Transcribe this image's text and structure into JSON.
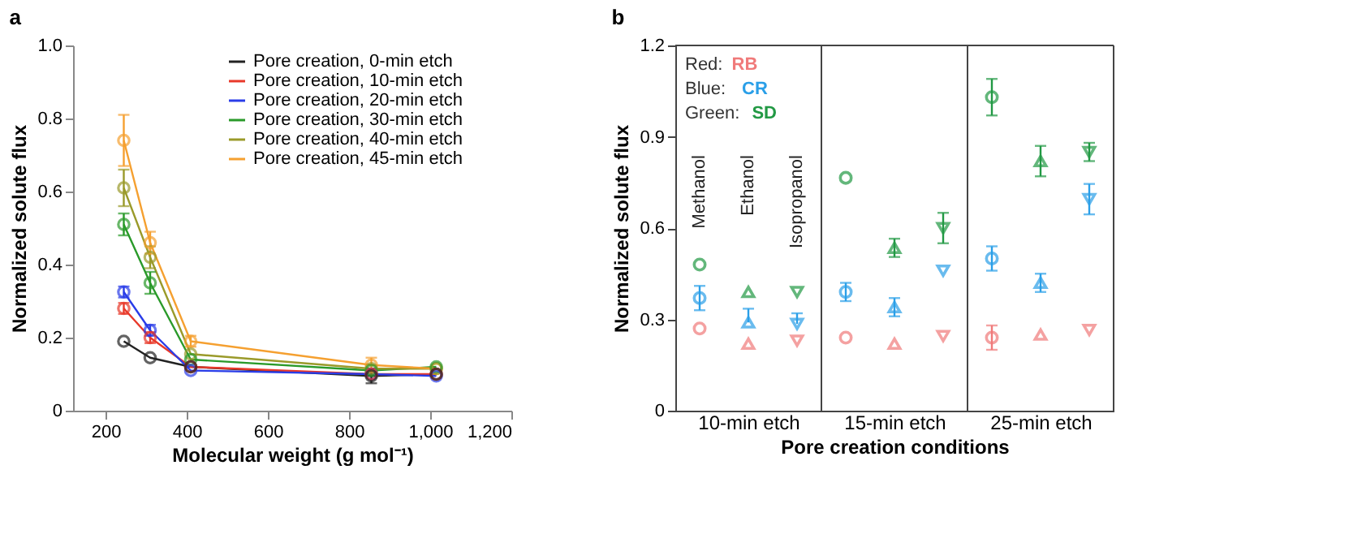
{
  "chart_data": [
    {
      "type": "line",
      "title": "a",
      "xlabel": "Molecular weight (g mol⁻¹)",
      "ylabel": "Normalized solute flux",
      "x": [
        245,
        310,
        410,
        855,
        1015
      ],
      "xlim": [
        120,
        1200
      ],
      "xticks": [
        200,
        400,
        600,
        800,
        {
          "value": 1000,
          "label": "1,000"
        },
        {
          "value": 1200,
          "label": "1,200"
        }
      ],
      "ylim": [
        0,
        1
      ],
      "yticks": [
        0,
        0.2,
        0.4,
        0.6,
        0.8,
        {
          "value": 1,
          "label": "1.0"
        }
      ],
      "grid": false,
      "legend": "top right",
      "marker": "circle",
      "line_style": "solid",
      "series": [
        {
          "name": "Pore creation, 0-min etch",
          "color": "#222222",
          "values": [
            0.19,
            0.145,
            0.12,
            0.095,
            0.1
          ],
          "errors": [
            null,
            null,
            null,
            0.02,
            null
          ]
        },
        {
          "name": "Pore creation, 10-min etch",
          "color": "#e8392a",
          "values": [
            0.28,
            0.2,
            0.12,
            0.1,
            0.1
          ],
          "errors": [
            0.015,
            0.015,
            null,
            null,
            null
          ]
        },
        {
          "name": "Pore creation, 20-min etch",
          "color": "#2a3de8",
          "values": [
            0.325,
            0.22,
            0.11,
            0.1,
            0.095
          ],
          "errors": [
            0.015,
            0.015,
            null,
            null,
            null
          ]
        },
        {
          "name": "Pore creation, 30-min etch",
          "color": "#2a9a2a",
          "values": [
            0.51,
            0.35,
            0.14,
            0.11,
            0.12
          ],
          "errors": [
            0.03,
            0.03,
            null,
            null,
            null
          ]
        },
        {
          "name": "Pore creation, 40-min etch",
          "color": "#9a9a2a",
          "values": [
            0.61,
            0.42,
            0.155,
            0.115,
            0.115
          ],
          "errors": [
            0.05,
            0.03,
            null,
            null,
            null
          ]
        },
        {
          "name": "Pore creation, 45-min etch",
          "color": "#f5a030",
          "values": [
            0.74,
            0.46,
            0.19,
            0.125,
            0.115
          ],
          "errors": [
            0.07,
            0.03,
            0.015,
            0.02,
            null
          ]
        }
      ]
    },
    {
      "type": "scatter",
      "title": "b",
      "xlabel": "Pore creation conditions",
      "ylabel": "Normalized solute flux",
      "categories": [
        null,
        "10-min etch",
        null,
        null,
        "15-min etch",
        null,
        null,
        "25-min etch",
        null
      ],
      "ylim": [
        0,
        1.2
      ],
      "yticks": [
        0,
        0.3,
        0.6,
        0.9,
        1.2
      ],
      "grid": false,
      "annotations": [
        "Red:",
        "Blue:",
        "Green:",
        "Methanol",
        "Ethanol",
        "Isopropanol"
      ],
      "series": [
        {
          "name": "RB",
          "color": "#f07a7a",
          "marker": "circle",
          "values": [
            0.27,
            null,
            null,
            0.24,
            null,
            null,
            0.24,
            null,
            null
          ],
          "errors": [
            null,
            null,
            null,
            null,
            null,
            null,
            0.04,
            null,
            null
          ]
        },
        {
          "color": "#f07a7a",
          "marker": "triangle",
          "values": [
            null,
            0.22,
            null,
            null,
            0.22,
            null,
            null,
            0.25,
            null
          ]
        },
        {
          "color": "#f07a7a",
          "marker": "triangle-down",
          "values": [
            null,
            null,
            0.23,
            null,
            null,
            0.245,
            null,
            null,
            0.265
          ]
        },
        {
          "name": "CR",
          "color": "#2a9fe8",
          "marker": "circle",
          "values": [
            0.37,
            null,
            null,
            0.39,
            null,
            null,
            0.5,
            null,
            null
          ],
          "errors": [
            0.04,
            null,
            null,
            0.03,
            null,
            null,
            0.04,
            null,
            null
          ]
        },
        {
          "color": "#2a9fe8",
          "marker": "triangle",
          "values": [
            null,
            0.29,
            null,
            null,
            0.34,
            null,
            null,
            0.42,
            null
          ],
          "errors": [
            null,
            [
              0.29,
              0.335
            ],
            null,
            null,
            0.03,
            null,
            null,
            0.03,
            null
          ]
        },
        {
          "color": "#2a9fe8",
          "marker": "triangle-down",
          "values": [
            null,
            null,
            0.285,
            null,
            null,
            0.46,
            null,
            null,
            0.695
          ],
          "errors": [
            null,
            null,
            [
              0.285,
              0.32
            ],
            null,
            null,
            null,
            null,
            null,
            0.05
          ]
        },
        {
          "name": "SD",
          "color": "#229944",
          "marker": "circle",
          "values": [
            0.48,
            null,
            null,
            0.765,
            null,
            null,
            1.03,
            null,
            null
          ],
          "errors": [
            null,
            null,
            null,
            null,
            null,
            null,
            0.06,
            null,
            null
          ]
        },
        {
          "color": "#229944",
          "marker": "triangle",
          "values": [
            null,
            0.39,
            null,
            null,
            0.535,
            null,
            null,
            0.82,
            null
          ],
          "errors": [
            null,
            null,
            null,
            null,
            0.03,
            null,
            null,
            0.05,
            null
          ]
        },
        {
          "color": "#229944",
          "marker": "triangle-down",
          "values": [
            null,
            null,
            0.39,
            null,
            null,
            0.6,
            null,
            null,
            0.85
          ],
          "errors": [
            null,
            null,
            null,
            null,
            null,
            0.05,
            null,
            null,
            0.03
          ]
        }
      ]
    }
  ]
}
